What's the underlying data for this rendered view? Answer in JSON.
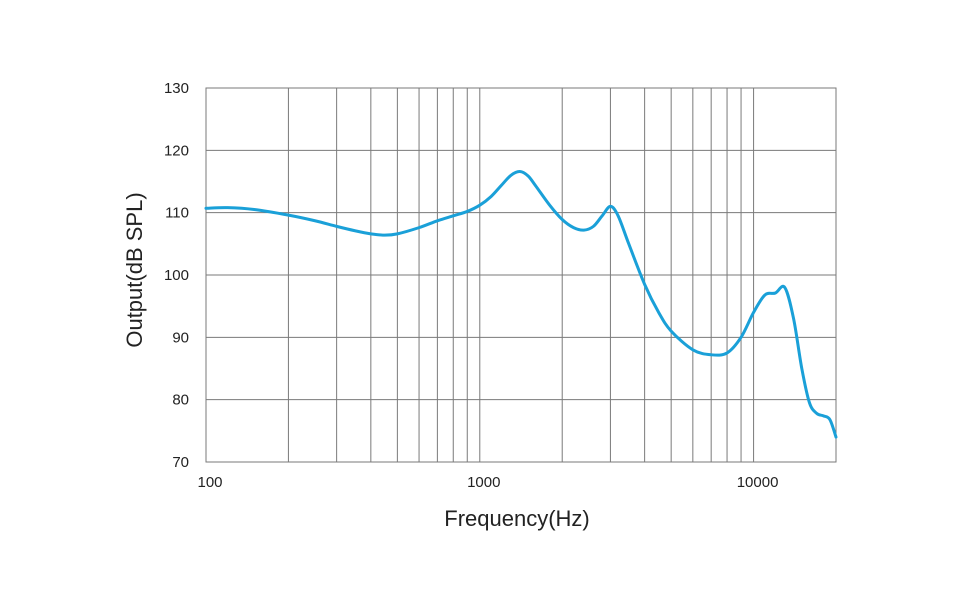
{
  "chart_data": {
    "type": "line",
    "xlabel": "Frequency(Hz)",
    "ylabel": "Output(dB SPL)",
    "x_scale": "log",
    "xlim": [
      100,
      20000
    ],
    "ylim": [
      70,
      130
    ],
    "x_ticks": [
      100,
      1000,
      10000
    ],
    "x_tick_labels": [
      "100",
      "1000",
      "10000"
    ],
    "y_ticks": [
      70,
      80,
      90,
      100,
      110,
      120,
      130
    ],
    "y_tick_labels": [
      "70",
      "80",
      "90",
      "100",
      "110",
      "120",
      "130"
    ],
    "grid": true,
    "line_color": "#1aa0d8",
    "grid_color": "#7a7a7a",
    "series": [
      {
        "x": [
          100,
          120,
          150,
          200,
          250,
          300,
          350,
          400,
          450,
          500,
          600,
          700,
          800,
          900,
          1000,
          1100,
          1200,
          1300,
          1400,
          1500,
          1600,
          1800,
          2000,
          2200,
          2400,
          2600,
          2800,
          3000,
          3200,
          3500,
          4000,
          4500,
          5000,
          6000,
          7000,
          8000,
          9000,
          10000,
          11000,
          12000,
          13000,
          14000,
          15000,
          16000,
          17000,
          18000,
          19000,
          20000
        ],
        "y": [
          110.7,
          110.8,
          110.5,
          109.6,
          108.7,
          107.8,
          107.1,
          106.6,
          106.4,
          106.6,
          107.6,
          108.7,
          109.5,
          110.2,
          111.2,
          112.6,
          114.4,
          116.0,
          116.6,
          115.9,
          114.3,
          111.2,
          108.9,
          107.6,
          107.2,
          107.8,
          109.5,
          111.0,
          109.5,
          105.0,
          98.5,
          94.0,
          91.0,
          88.0,
          87.2,
          87.5,
          90.0,
          94.0,
          96.8,
          97.1,
          98.0,
          93.0,
          85.0,
          79.5,
          77.8,
          77.4,
          76.8,
          74.0
        ]
      }
    ]
  }
}
